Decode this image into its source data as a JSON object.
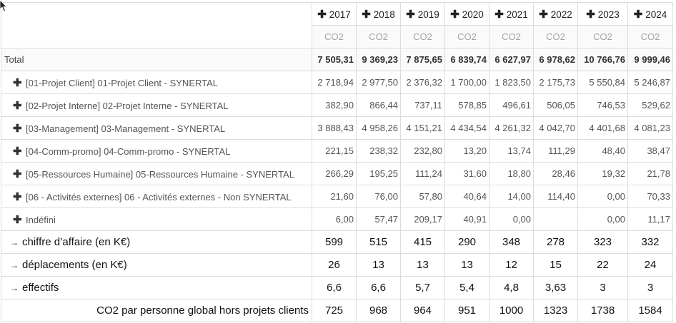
{
  "years": [
    "2017",
    "2018",
    "2019",
    "2020",
    "2021",
    "2022",
    "2023",
    "2024"
  ],
  "measure": "CO2",
  "total": {
    "label": "Total",
    "values": [
      "7 505,31",
      "9 369,23",
      "7 875,65",
      "6 839,74",
      "6 627,97",
      "6 978,62",
      "10 766,76",
      "9 999,46"
    ]
  },
  "rows": [
    {
      "label": "[01-Projet Client] 01-Projet Client - SYNERTAL",
      "values": [
        "2 718,94",
        "2 977,50",
        "2 376,32",
        "1 700,00",
        "1 823,50",
        "2 175,73",
        "5 550,84",
        "5 246,87"
      ]
    },
    {
      "label": "[02-Projet Interne] 02-Projet Interne - SYNERTAL",
      "values": [
        "382,90",
        "866,44",
        "737,11",
        "578,85",
        "496,61",
        "506,05",
        "746,53",
        "529,62"
      ]
    },
    {
      "label": "[03-Management] 03-Management - SYNERTAL",
      "values": [
        "3 888,43",
        "4 958,26",
        "4 151,21",
        "4 434,54",
        "4 261,32",
        "4 042,70",
        "4 401,68",
        "4 081,23"
      ]
    },
    {
      "label": "[04-Comm-promo] 04-Comm-promo - SYNERTAL",
      "values": [
        "221,15",
        "238,32",
        "232,80",
        "13,20",
        "13,74",
        "111,29",
        "48,40",
        "38,47"
      ]
    },
    {
      "label": "[05-Ressources Humaine] 05-Ressources Humaine - SYNERTAL",
      "values": [
        "266,29",
        "195,25",
        "111,24",
        "31,60",
        "18,80",
        "28,46",
        "19,32",
        "21,78"
      ]
    },
    {
      "label": "[06 - Activités externes] 06 - Activités externes - Non SYNERTAL",
      "values": [
        "21,60",
        "76,00",
        "57,80",
        "40,64",
        "14,00",
        "114,40",
        "0,00",
        "70,33"
      ]
    },
    {
      "label": "Indéfini",
      "values": [
        "6,00",
        "57,47",
        "209,17",
        "40,91",
        "0,00",
        "",
        "0,00",
        "11,17"
      ]
    }
  ],
  "bottom": [
    {
      "arrow": "→",
      "label": "chiffre d’affaire (en K€)",
      "values": [
        "599",
        "515",
        "415",
        "290",
        "348",
        "278",
        "323",
        "332"
      ]
    },
    {
      "arrow": "→",
      "label": "déplacements (en K€)",
      "values": [
        "26",
        "13",
        "13",
        "13",
        "12",
        "15",
        "22",
        "24"
      ]
    },
    {
      "arrow": "→",
      "label": "effectifs",
      "values": [
        "6,6",
        "6,6",
        "5,7",
        "5,4",
        "4,8",
        "3,63",
        "3",
        "3"
      ]
    },
    {
      "arrow": "",
      "label": "CO2 par personne global hors projets clients",
      "values": [
        "725",
        "968",
        "964",
        "951",
        "1000",
        "1323",
        "1738",
        "1584"
      ]
    }
  ]
}
